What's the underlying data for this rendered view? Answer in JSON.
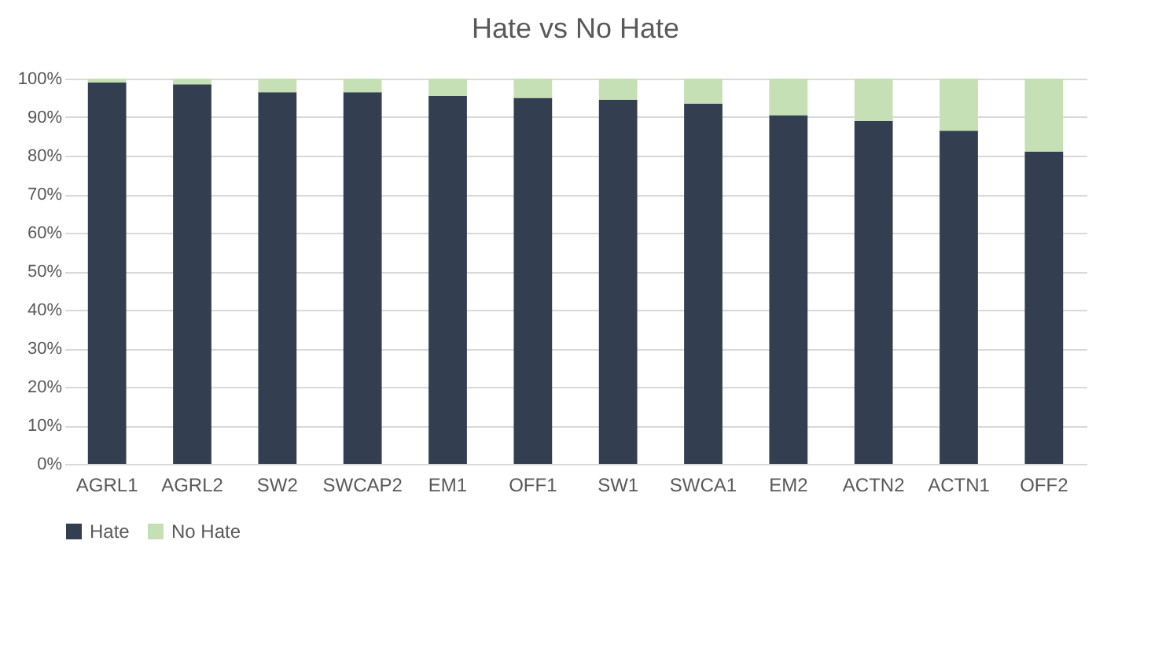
{
  "chart_data": {
    "type": "bar",
    "title": "Hate vs No Hate",
    "stacked": true,
    "categories": [
      "AGRL1",
      "AGRL2",
      "SW2",
      "SWCAP2",
      "EM1",
      "OFF1",
      "SW1",
      "SWCA1",
      "EM2",
      "ACTN2",
      "ACTN1",
      "OFF2"
    ],
    "series": [
      {
        "name": "Hate",
        "color": "#333f50",
        "values": [
          99,
          98.5,
          96.5,
          96.5,
          95.5,
          95,
          94.5,
          93.5,
          90.5,
          89,
          86.5,
          81
        ]
      },
      {
        "name": "No Hate",
        "color": "#c5e0b4",
        "values": [
          1,
          1.5,
          3.5,
          3.5,
          4.5,
          5,
          5.5,
          6.5,
          9.5,
          11,
          13.5,
          19
        ]
      }
    ],
    "ylim": [
      0,
      100
    ],
    "yticks": [
      {
        "value": 0,
        "label": "0%"
      },
      {
        "value": 10,
        "label": "10%"
      },
      {
        "value": 20,
        "label": "20%"
      },
      {
        "value": 30,
        "label": "30%"
      },
      {
        "value": 40,
        "label": "40%"
      },
      {
        "value": 50,
        "label": "50%"
      },
      {
        "value": 60,
        "label": "60%"
      },
      {
        "value": 70,
        "label": "70%"
      },
      {
        "value": 80,
        "label": "80%"
      },
      {
        "value": 90,
        "label": "90%"
      },
      {
        "value": 100,
        "label": "100%"
      }
    ],
    "grid": "y",
    "legend": "bottom"
  }
}
